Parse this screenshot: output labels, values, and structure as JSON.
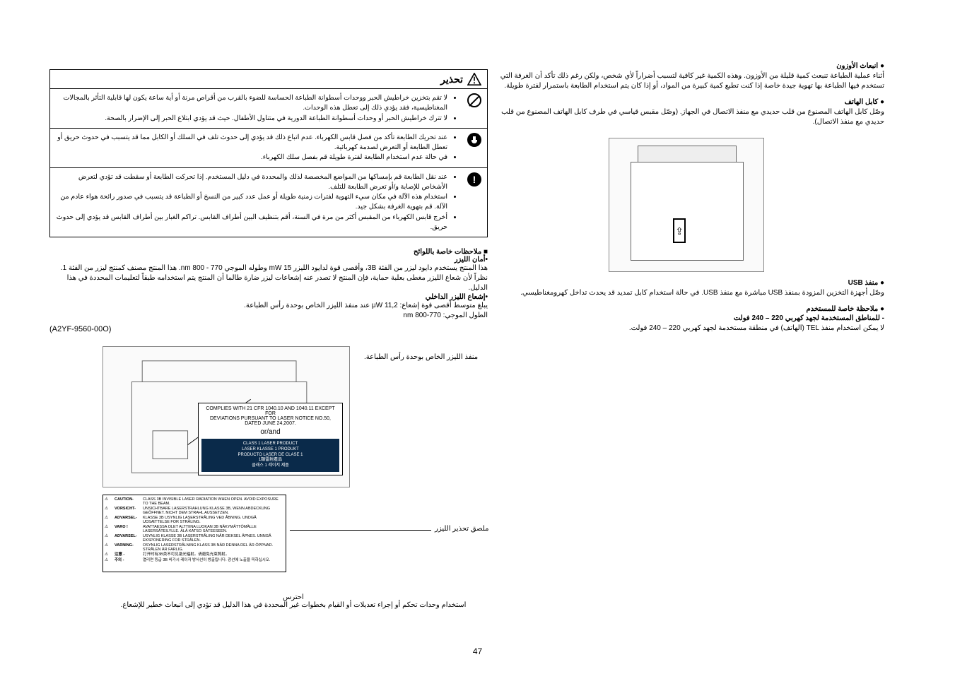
{
  "page_number": "47",
  "right_column": {
    "ozone_heading": "● انبعاث الأوزون",
    "ozone_body": "أثناء عملية الطباعة تنبعث كمية قليلة من الأوزون. وهذه الكمية غير كافية لتسبب أضراراً لأي شخص، ولكن رغم ذلك تأكد أن الغرفة التي تستخدم فيها الطباعة بها تهوية جيدة خاصة إذا كنت تطبع كمية كبيرة من المواد، أو إذا كان يتم استخدام الطابعة باستمرار لفترة طويلة.",
    "phone_heading": "● كابل الهاتف",
    "phone_body": "وصّل كابل الهاتف المصنوع من قلب حديدي مع منفذ الاتصال في الجهاز. (وصّل مقبس قياسي في طرف كابل الهاتف المصنوع من قلب حديدي مع منفذ الاتصال).",
    "usb_heading": "● منفذ USB",
    "usb_body": "وصّل أجهزة التخزين المزودة بمنفذ USB مباشرة مع منفذ USB. في حالة استخدام كابل تمديد قد يحدث تداخل كهرومغناطيسي.",
    "user_note_heading": "● ملاحظة خاصة للمستخدم",
    "voltage_heading": "- للمناطق المستخدمة لجهد كهربي 220 – 240 فولت",
    "voltage_body": "لا يمكن استخدام منفذ TEL (الهاتف) في منطقة مستخدمة لجهد كهربي 220 – 240 فولت."
  },
  "warning": {
    "title": "تحذير",
    "row1_a": "لا تقم بتخزين خراطيش الحبر ووحدات أسطوانة الطباعة الحساسة للضوء بالقرب من أقراص مرنة أو أية ساعة يكون لها قابلية التأثر بالمجالات المغناطيسية، فقد يؤدي ذلك إلى تعطل هذه الوحدات.",
    "row1_b": "لا تترك خراطيش الحبر أو وحدات أسطوانة الطباعة الدورية في متناول الأطفال. حيث قد يؤدي ابتلاع الحبر إلى الإضرار بالصحة.",
    "row2_a": "عند تحريك الطابعة تأكد من فصل قابس الكهرباء. عدم اتباع ذلك قد يؤدي إلى حدوث تلف في السلك أو الكابل مما قد يتسبب في حدوث حريق أو تعطل الطابعة أو التعرض لصدمة كهربائية.",
    "row2_b": "في حالة عدم استخدام الطابعة لفترة طويلة قم بفصل سلك الكهرباء.",
    "row3_a": "عند نقل الطابعة قم بإمساكها من المواضع المخصصة لذلك والمحددة في دليل المستخدم. إذا تحركت الطابعة أو سقطت قد تؤدي لتعرض الأشخاص للإصابة و/أو تعرض الطابعة للتلف.",
    "row3_b": "استخدام هذه الآلة في مكان سيء التهوية لفترات زمنية طويلة أو عمل عدد كبير من النسخ أو الطباعة قد يتسبب في صدور رائحة هواء عادم من الآلة. قم بتهوية الغرفة بشكل جيد.",
    "row3_c": "أخرج قابس الكهرباء من المقبس أكثر من مرة في السنة، أقم بتنظيف البين أطراف القابس. تراكم الغبار بين أطراف القابس قد يؤدي إلى حدوث حريق."
  },
  "notes": {
    "heading": "■ ملاحظات خاصة باللوائح",
    "laser_safety_h": "•أمان الليزر",
    "laser_safety_body": "هذا المنتج يستخدم دايود ليزر من الفئة 3B، وأقصى قوة لدايود الليزر mW 15 وطوله الموجي 770 - 800 nm. هذا المنتج مصنف كمنتج ليزر من الفئة 1. نظراً لأن شعاع الليزر مغطى بعلبة حماية، فإن المنتج لا تصدر عنه إشعاعات ليزر ضارة طالما أن المنتج يتم استخدامه طبقاً لتعليمات المحددة في هذا الدليل.",
    "internal_h": "•إشعاع الليزر الداخلي",
    "internal_l1": "يبلغ متوسط أقصى قوة إشعاع: μW 11,2 عند منفذ الليزر الخاص بوحدة رأس الطباعة.",
    "internal_l2": "الطول الموجي: 770-800 nm",
    "doc_code": "(A2YF-9560-00O)"
  },
  "laser_figure": {
    "aperture_label": "منفذ الليزر الخاص بوحدة رأس الطباعة.",
    "compliance_l1": "COMPLIES WITH 21 CFR 1040.10 AND 1040.11 EXCEPT FOR",
    "compliance_l2": "DEVIATIONS PURSUANT TO LASER NOTICE NO.50, DATED JUNE 24,2007.",
    "compliance_l3": "or/and",
    "compliance_blue1": "CLASS 1 LASER PRODUCT",
    "compliance_blue2": "LASER KLASSE 1 PRODUKT",
    "compliance_blue3": "PRODUCTO LASER DE CLASE 1",
    "compliance_blue4": "1類雷射產品",
    "compliance_blue5": "클래스 1 레이저 제품",
    "caution_label": "ملصق تحذير الليزر",
    "caution_rows": [
      {
        "lang": "CAUTION-",
        "msg": "CLASS 3B INVISIBLE LASER RADIATION WHEN OPEN. AVOID EXPOSURE TO THE BEAM."
      },
      {
        "lang": "VORSICHT-",
        "msg": "UNSICHTBARE LASERSTRAHLUNG KLASSE 3B, WENN ABDECKUNG GEÖFFNET. NICHT DEM STRAHL AUSSETZEN."
      },
      {
        "lang": "ADVARSEL-",
        "msg": "KLASSE 3B USYNLIG LASERSTRÅLING VED ÅBNING. UNDGÅ UDSÆTTELSE FOR STRÅLING."
      },
      {
        "lang": "VARO !",
        "msg": "AVATTAESSA OLET ALTTIINA LUOKAN 3B NÄKYMÄTTÖMÄLLE LASERSÄTEILYLLE. ÄLÄ KATSO SÄTEESEEN."
      },
      {
        "lang": "ADVARSEL-",
        "msg": "USYNLIG KLASSE 3B LASERSTRÅLING NÅR DEKSEL ÅPNES. UNNGÅ EKSPONERING FOR STRÅLEN."
      },
      {
        "lang": "VARNING-",
        "msg": "OSYNLIG LASERSTRÅLNING KLASS 3B NÄR DENNA DEL ÄR ÖPPNAD. STRÅLEN ÄR FARLIG."
      },
      {
        "lang": "注意 -",
        "msg": "打开时有3B类不可见激光辐射。请避免光束照射。"
      },
      {
        "lang": "주의 -",
        "msg": "열리면 등급 3B 비가시 레이저 방사선이 방출됩니다. 광선에 노출을 피하십시오."
      }
    ]
  },
  "bottom_caution": {
    "heading": "احترس",
    "body": "استخدام وحدات تحكم أو إجراء تعديلات أو القيام بخطوات غير المحددة في هذا الدليل قد تؤدي إلى انبعاث خطير للإشعاع."
  },
  "colors": {
    "text": "#000000",
    "bg": "#ffffff",
    "blue_box": "#0a2a4a"
  }
}
